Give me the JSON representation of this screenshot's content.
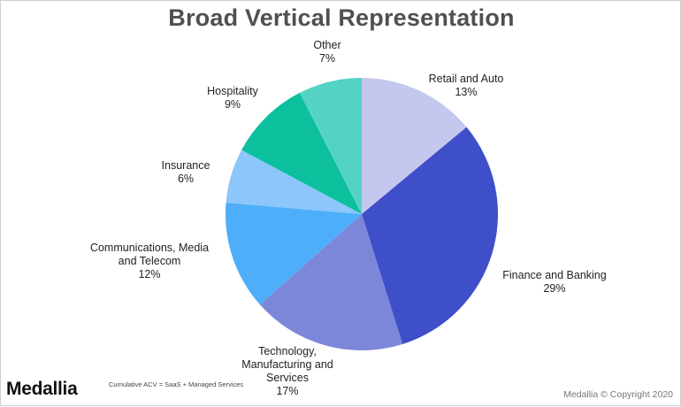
{
  "chart_data": {
    "type": "pie",
    "title": "Broad Vertical Representation",
    "slices": [
      {
        "lines": [
          "Retail and Auto",
          "13%"
        ],
        "value": 13,
        "color": "#c5c8ee"
      },
      {
        "lines": [
          "Finance and Banking",
          "29%"
        ],
        "value": 29,
        "color": "#3f4fc9"
      },
      {
        "lines": [
          "Technology,",
          "Manufacturing and",
          "Services",
          "17%"
        ],
        "value": 17,
        "color": "#7d87d9"
      },
      {
        "lines": [
          "Communications, Media",
          "and Telecom",
          "12%"
        ],
        "value": 12,
        "color": "#4eaefa"
      },
      {
        "lines": [
          "Insurance",
          "6%"
        ],
        "value": 6,
        "color": "#8cc6fb"
      },
      {
        "lines": [
          "Hospitality",
          "9%"
        ],
        "value": 9,
        "color": "#0cbf9d"
      },
      {
        "lines": [
          "Other",
          "7%"
        ],
        "value": 7,
        "color": "#54d3c4"
      }
    ],
    "start": "12 o'clock",
    "direction": "clockwise"
  },
  "footer": {
    "logo": "Medallia",
    "note": "Cumulative ACV = SaaS + Managed Services",
    "copyright": "Medallia © Copyright 2020"
  }
}
